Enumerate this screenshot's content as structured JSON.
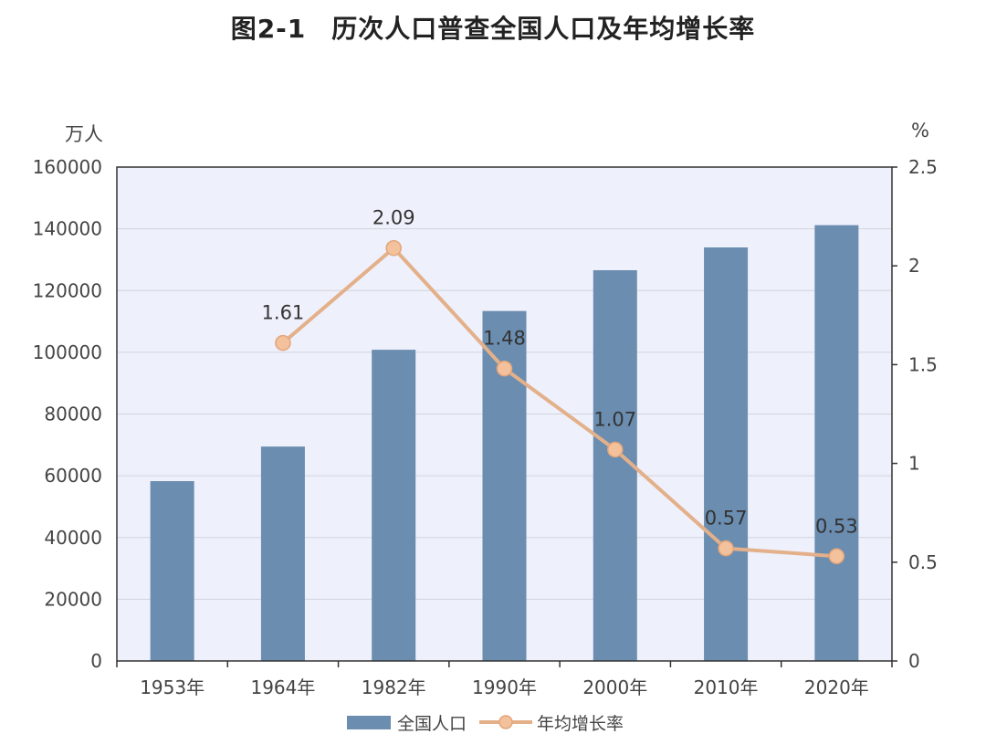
{
  "title_prefix": "图2-1",
  "title_text": "历次人口普查全国人口及年均增长率",
  "chart_data": {
    "type": "bar",
    "title": "历次人口普查全国人口及年均增长率",
    "categories": [
      "1953年",
      "1964年",
      "1982年",
      "1990年",
      "2000年",
      "2010年",
      "2020年"
    ],
    "y_left_unit": "万人",
    "y_right_unit": "%",
    "y_left_lim": [
      0,
      160000
    ],
    "y_left_ticks": [
      "0",
      "20000",
      "40000",
      "60000",
      "80000",
      "100000",
      "120000",
      "140000",
      "160000"
    ],
    "y_right_lim": [
      0,
      2.5
    ],
    "y_right_ticks": [
      "0",
      "0.5",
      "1",
      "1.5",
      "2",
      "2.5"
    ],
    "grid": true,
    "legend_position": "bottom",
    "colors": {
      "bar": "#6b8db0",
      "line": "#e3b08a",
      "marker_fill": "#f4c19d",
      "plot_bg": "#eef0fb"
    },
    "series": [
      {
        "name": "全国人口",
        "type": "bar",
        "axis": "left",
        "values": [
          58260,
          69458,
          100818,
          113368,
          126583,
          133972,
          141178
        ]
      },
      {
        "name": "年均增长率",
        "type": "line",
        "axis": "right",
        "values": [
          null,
          1.61,
          2.09,
          1.48,
          1.07,
          0.57,
          0.53
        ],
        "labels": [
          "",
          "1.61",
          "2.09",
          "1.48",
          "1.07",
          "0.57",
          "0.53"
        ]
      }
    ]
  }
}
